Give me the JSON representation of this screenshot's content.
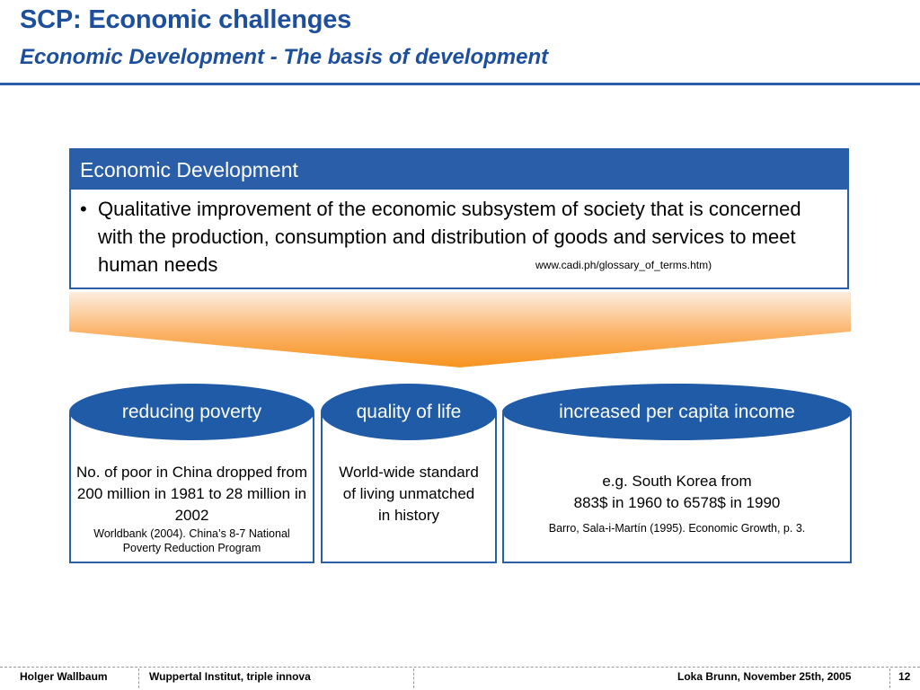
{
  "slide": {
    "title": "SCP: Economic challenges",
    "subtitle": "Economic Development - The basis of development"
  },
  "definition": {
    "header": "Economic Development",
    "bullet": "•",
    "text": "Qualitative improvement of the economic subsystem of society that is concerned with the production, consumption and distribution of goods and services to meet human needs",
    "source": "www.cadi.ph/glossary_of_terms.htm)"
  },
  "pillars": [
    {
      "label": "reducing poverty",
      "main": "No. of poor in China dropped from 200 million in 1981 to 28 million in 2002",
      "source": "Worldbank (2004). China’s 8-7 National Poverty Reduction Program"
    },
    {
      "label": "quality of life",
      "main": "World-wide standard of living unmatched in history",
      "source": ""
    },
    {
      "label": "increased per capita income",
      "main_line1": "e.g. South Korea from",
      "main_line2": "883$ in 1960 to 6578$ in 1990",
      "source": "Barro, Sala-i-Martín (1995). Economic Growth, p. 3."
    }
  ],
  "footer": {
    "author": "Holger Wallbaum",
    "institute": "Wuppertal Institut, triple innova",
    "event": "Loka Brunn, November 25th, 2005",
    "page": "12"
  },
  "colors": {
    "brand_blue": "#2a5ea8",
    "funnel_orange": "#f7931e",
    "funnel_light": "#fde8d3"
  }
}
